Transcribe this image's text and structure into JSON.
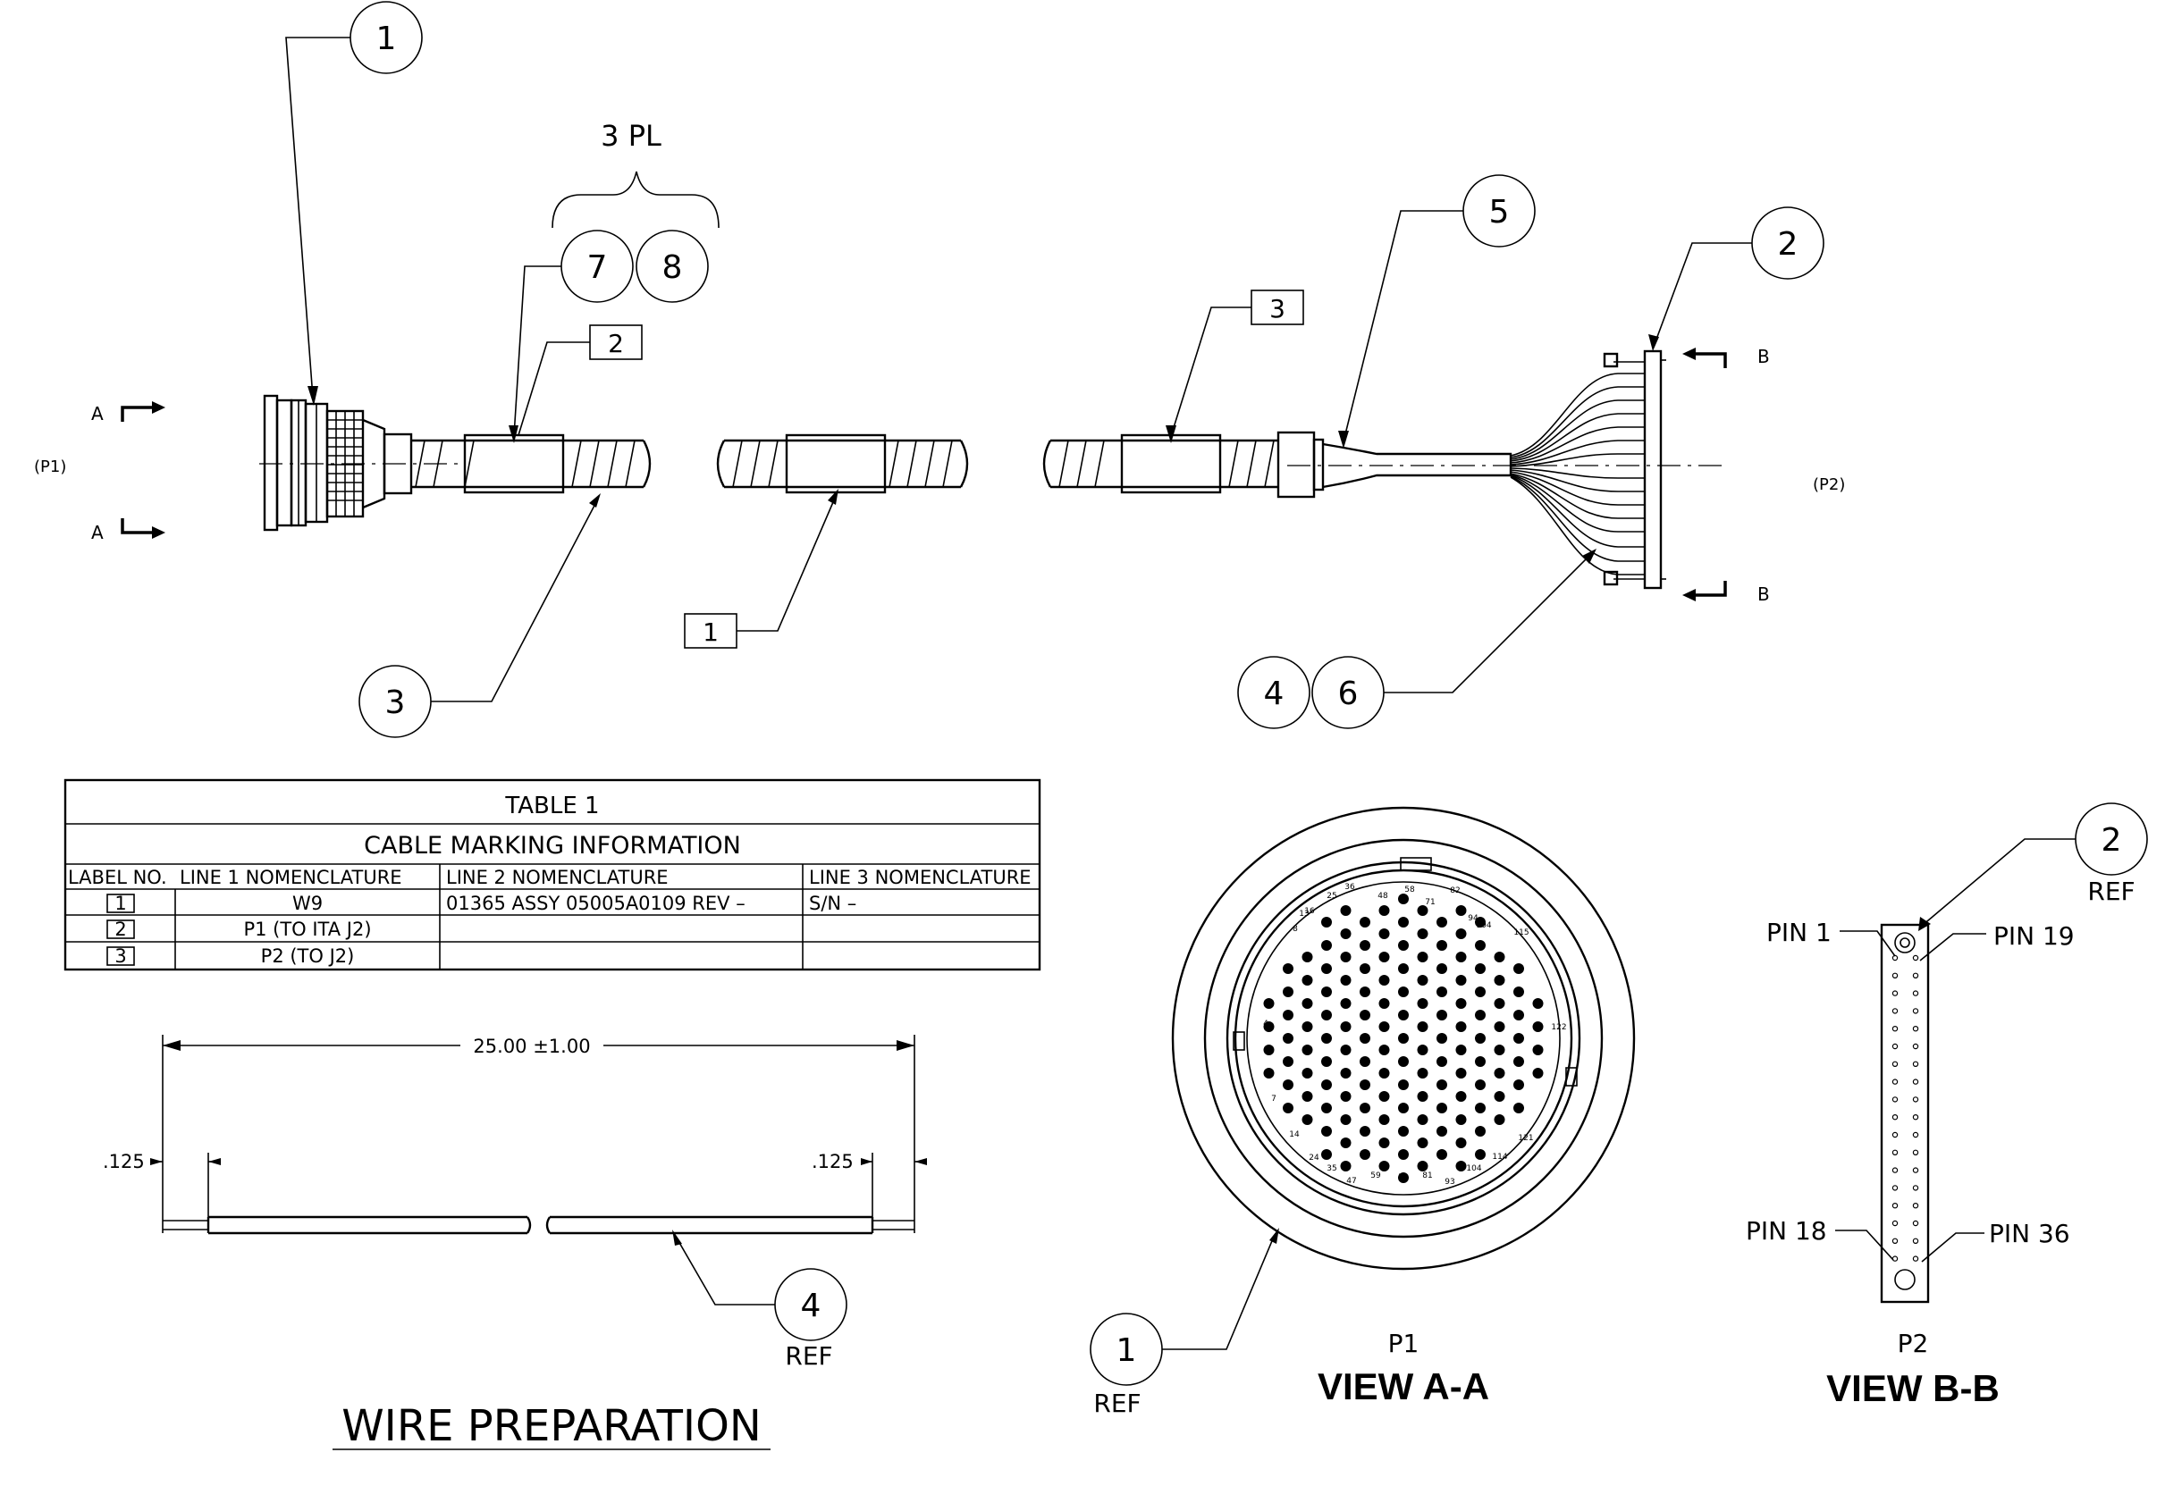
{
  "balloons": {
    "b1_top": "1",
    "b2_top": "2",
    "b3": "3",
    "b5": "5",
    "b7": "7",
    "b8": "8",
    "b4": "4",
    "b6": "6",
    "b2_ref": "2",
    "b4_ref": "4",
    "b1_ref": "1"
  },
  "labels": {
    "three_pl": "3 PL",
    "p1_tag": "(P1)",
    "p2_tag": "(P2)",
    "section_a": "A",
    "section_b": "B",
    "ref": "REF",
    "box_1": "1",
    "box_2": "2",
    "box_3": "3"
  },
  "table": {
    "title": "TABLE 1",
    "subtitle": "CABLE MARKING INFORMATION",
    "headers": [
      "LABEL NO.",
      "LINE 1 NOMENCLATURE",
      "LINE 2 NOMENCLATURE",
      "LINE 3 NOMENCLATURE"
    ],
    "rows": [
      {
        "label": "1",
        "line1": "W9",
        "line2": "01365 ASSY 05005A0109 REV –",
        "line3": "S/N –"
      },
      {
        "label": "2",
        "line1": "P1 (TO ITA J2)",
        "line2": "",
        "line3": ""
      },
      {
        "label": "3",
        "line1": "P2 (TO J2)",
        "line2": "",
        "line3": ""
      }
    ]
  },
  "wire_prep": {
    "length": "25.00 ±1.00",
    "strip_left": ".125",
    "strip_right": ".125",
    "title": "WIRE PREPARATION"
  },
  "view_a": {
    "connector": "P1",
    "title": "VIEW A-A",
    "pin_numbers": [
      "36",
      "58",
      "82",
      "25",
      "48",
      "71",
      "94",
      "16",
      "104",
      "115",
      "8",
      "13",
      "4",
      "122",
      "7",
      "14",
      "24",
      "35",
      "47",
      "59",
      "70",
      "81",
      "93",
      "104",
      "114",
      "121"
    ]
  },
  "view_b": {
    "connector": "P2",
    "title": "VIEW B-B",
    "pin_1": "PIN 1",
    "pin_19": "PIN 19",
    "pin_18": "PIN 18",
    "pin_36": "PIN 36"
  }
}
